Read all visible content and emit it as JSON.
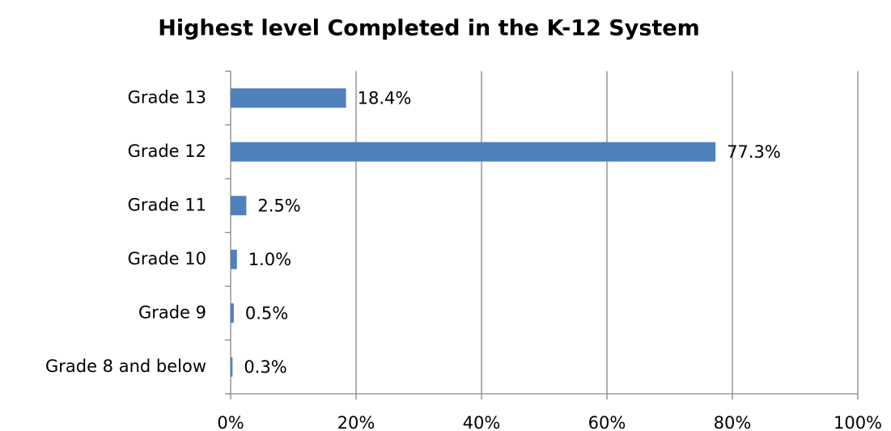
{
  "chart_data": {
    "type": "bar",
    "orientation": "horizontal",
    "title": "Highest level Completed in the K-12 System",
    "categories": [
      "Grade 13",
      "Grade 12",
      "Grade 11",
      "Grade 10",
      "Grade 9",
      "Grade 8 and below"
    ],
    "values": [
      18.4,
      77.3,
      2.5,
      1.0,
      0.5,
      0.3
    ],
    "value_labels": [
      "18.4%",
      "77.3%",
      "2.5%",
      "1.0%",
      "0.5%",
      "0.3%"
    ],
    "color": "#4f81bd",
    "xlim": [
      0,
      100
    ],
    "xticks": [
      {
        "value": 0,
        "label": "0%"
      },
      {
        "value": 20,
        "label": "20%"
      },
      {
        "value": 40,
        "label": "40%"
      },
      {
        "value": 60,
        "label": "60%"
      },
      {
        "value": 80,
        "label": "80%"
      },
      {
        "value": 100,
        "label": "100%"
      }
    ],
    "grid": true
  }
}
